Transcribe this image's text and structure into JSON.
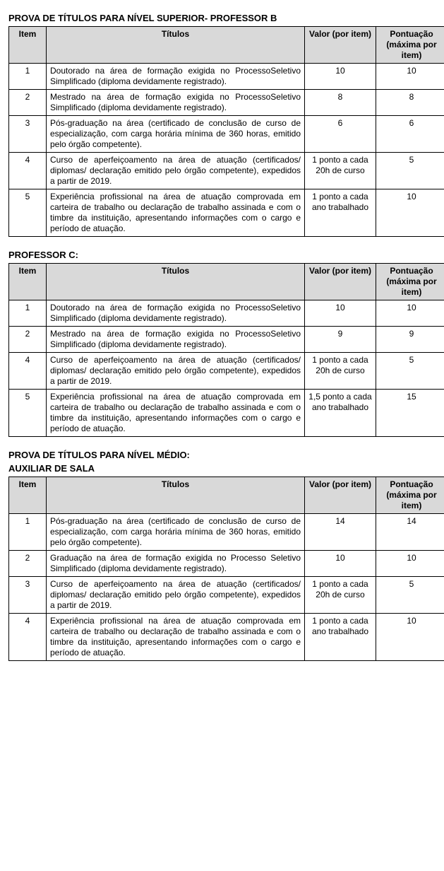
{
  "headers": {
    "item": "Item",
    "titulos": "Títulos",
    "valor": "Valor (por item)",
    "pontuacao": "Pontuação (máxima por item)"
  },
  "section1": {
    "title": "PROVA DE TÍTULOS PARA NÍVEL SUPERIOR- PROFESSOR B",
    "rows": [
      {
        "item": "1",
        "titulo": "Doutorado na área de formação exigida no ProcessoSeletivo Simplificado (diploma devidamente registrado).",
        "valor": "10",
        "pontuacao": "10"
      },
      {
        "item": "2",
        "titulo": "Mestrado na área de formação exigida no ProcessoSeletivo Simplificado (diploma devidamente registrado).",
        "valor": "8",
        "pontuacao": "8"
      },
      {
        "item": "3",
        "titulo": "Pós-graduação na área (certificado de conclusão de curso de especialização, com carga horária mínima de 360 horas, emitido pelo órgão competente).",
        "valor": "6",
        "pontuacao": "6"
      },
      {
        "item": "4",
        "titulo": "Curso de aperfeiçoamento na área de atuação (certificados/ diplomas/ declaração emitido pelo órgão competente), expedidos a partir de 2019.",
        "valor": "1 ponto a cada 20h de curso",
        "pontuacao": "5"
      },
      {
        "item": "5",
        "titulo": "Experiência profissional na área de atuação comprovada em carteira de trabalho ou declaração de trabalho assinada e com o timbre da instituição, apresentando informações com o cargo e período de atuação.",
        "valor": "1 ponto a cada ano trabalhado",
        "pontuacao": "10"
      }
    ]
  },
  "section2": {
    "title": "PROFESSOR C:",
    "rows": [
      {
        "item": "1",
        "titulo": "Doutorado na área de formação exigida no ProcessoSeletivo Simplificado (diploma devidamente registrado).",
        "valor": "10",
        "pontuacao": "10"
      },
      {
        "item": "2",
        "titulo": "Mestrado na área de formação exigida no ProcessoSeletivo Simplificado (diploma devidamente registrado).",
        "valor": "9",
        "pontuacao": "9"
      },
      {
        "item": "4",
        "titulo": "Curso de aperfeiçoamento na área de atuação (certificados/ diplomas/ declaração emitido pelo órgão competente), expedidos a partir de 2019.",
        "valor": "1 ponto a cada 20h de curso",
        "pontuacao": "5"
      },
      {
        "item": "5",
        "titulo": "Experiência profissional na área de atuação comprovada em carteira de trabalho ou declaração de trabalho assinada e com o timbre da instituição, apresentando informações com o cargo e período de atuação.",
        "valor": "1,5 ponto a cada ano trabalhado",
        "pontuacao": "15"
      }
    ]
  },
  "section3": {
    "title_line1": "PROVA DE TÍTULOS PARA NÍVEL MÉDIO:",
    "title_line2": "AUXILIAR DE SALA",
    "rows": [
      {
        "item": "1",
        "titulo": "Pós-graduação na área (certificado de conclusão de curso de especialização, com carga horária mínima de 360 horas, emitido pelo órgão competente).",
        "valor": "14",
        "pontuacao": "14"
      },
      {
        "item": "2",
        "titulo": "Graduação na área de formação exigida no Processo Seletivo Simplificado (diploma devidamente registrado).",
        "valor": "10",
        "pontuacao": "10"
      },
      {
        "item": "3",
        "titulo": "Curso de aperfeiçoamento na área de atuação (certificados/ diplomas/ declaração emitido pelo órgão competente), expedidos a partir de 2019.",
        "valor": "1 ponto a cada 20h de curso",
        "pontuacao": "5"
      },
      {
        "item": "4",
        "titulo": "Experiência profissional na área de atuação comprovada em carteira de trabalho ou declaração de trabalho assinada e com o timbre da instituição, apresentando informações com o cargo e período de atuação.",
        "valor": "1 ponto a cada ano trabalhado",
        "pontuacao": "10"
      }
    ]
  }
}
